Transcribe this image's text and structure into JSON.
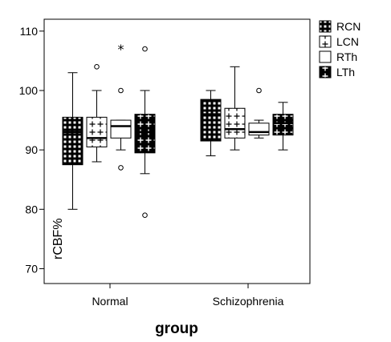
{
  "chart_data": {
    "type": "boxplot",
    "xlabel": "group",
    "ylabel": "rCBF%",
    "ylim": [
      67.5,
      112
    ],
    "yticks": [
      70,
      80,
      90,
      100,
      110
    ],
    "categories": [
      "Normal",
      "Schizophrenia"
    ],
    "legend_position": "top-right",
    "grid": false,
    "series": [
      {
        "name": "RCN",
        "pattern": "grid",
        "boxes": [
          {
            "category": "Normal",
            "whisker_low": 80,
            "q1": 87.5,
            "median": 93,
            "q3": 95.5,
            "whisker_high": 103,
            "outliers": [],
            "extremes": []
          },
          {
            "category": "Schizophrenia",
            "whisker_low": 89,
            "q1": 91.5,
            "median": 96,
            "q3": 98.5,
            "whisker_high": 100,
            "outliers": [],
            "extremes": []
          }
        ]
      },
      {
        "name": "LCN",
        "pattern": "plus",
        "boxes": [
          {
            "category": "Normal",
            "whisker_low": 88,
            "q1": 90.5,
            "median": 92,
            "q3": 95.5,
            "whisker_high": 100,
            "outliers": [
              104
            ],
            "extremes": []
          },
          {
            "category": "Schizophrenia",
            "whisker_low": 90,
            "q1": 92,
            "median": 93.5,
            "q3": 97,
            "whisker_high": 104,
            "outliers": [],
            "extremes": []
          }
        ]
      },
      {
        "name": "RTh",
        "pattern": "none",
        "boxes": [
          {
            "category": "Normal",
            "whisker_low": 90,
            "q1": 92,
            "median": 94,
            "q3": 95,
            "whisker_high": 95,
            "outliers": [
              87,
              100
            ],
            "extremes": [
              107
            ]
          },
          {
            "category": "Schizophrenia",
            "whisker_low": 92,
            "q1": 92.5,
            "median": 93,
            "q3": 94.5,
            "whisker_high": 95,
            "outliers": [
              100
            ],
            "extremes": []
          }
        ]
      },
      {
        "name": "LTh",
        "pattern": "dark-plus",
        "boxes": [
          {
            "category": "Normal",
            "whisker_low": 86,
            "q1": 89.5,
            "median": 93,
            "q3": 96,
            "whisker_high": 100,
            "outliers": [
              79,
              107
            ],
            "extremes": []
          },
          {
            "category": "Schizophrenia",
            "whisker_low": 90,
            "q1": 92.5,
            "median": 94.5,
            "q3": 96,
            "whisker_high": 98,
            "outliers": [],
            "extremes": []
          }
        ]
      }
    ]
  }
}
